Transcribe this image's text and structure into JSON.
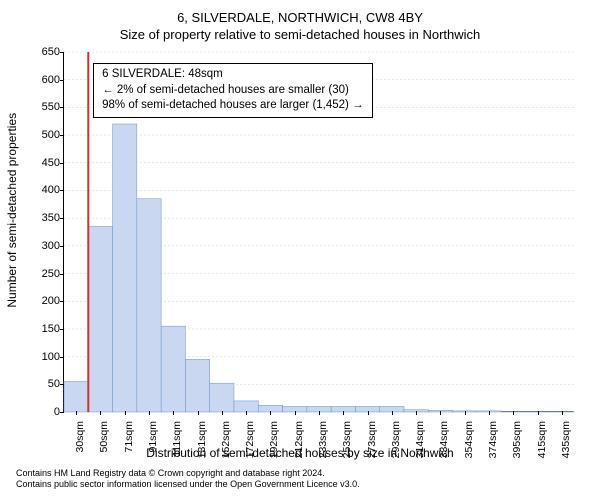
{
  "titles": {
    "main": "6, SILVERDALE, NORTHWICH, CW8 4BY",
    "sub": "Size of property relative to semi-detached houses in Northwich"
  },
  "axes": {
    "ylabel": "Number of semi-detached properties",
    "xlabel": "Distribution of semi-detached houses by size in Northwich",
    "ylim": [
      0,
      650
    ],
    "ytick_step": 50,
    "xticks": [
      "30sqm",
      "50sqm",
      "71sqm",
      "91sqm",
      "111sqm",
      "131sqm",
      "152sqm",
      "172sqm",
      "192sqm",
      "212sqm",
      "233sqm",
      "253sqm",
      "273sqm",
      "293sqm",
      "314sqm",
      "334sqm",
      "354sqm",
      "374sqm",
      "395sqm",
      "415sqm",
      "435sqm"
    ]
  },
  "chart": {
    "type": "histogram",
    "bar_color": "#c9d8f0",
    "bar_stroke": "#6c8fc7",
    "background_color": "#ffffff",
    "grid_color": "#cccccc",
    "marker_color": "#d43030",
    "bar_width": 1.0,
    "values": [
      55,
      335,
      520,
      385,
      155,
      95,
      52,
      20,
      12,
      10,
      10,
      10,
      10,
      10,
      4,
      3,
      2,
      2,
      1,
      1,
      1
    ],
    "marker_bin_index": 1,
    "marker_value_sqm": 48
  },
  "annotation": {
    "line1": "6 SILVERDALE: 48sqm",
    "line2": "← 2% of semi-detached houses are smaller (30)",
    "line3": "98% of semi-detached houses are larger (1,452) →",
    "box_left_bin": 1.2,
    "box_top_value": 630,
    "fontsize": 11.5
  },
  "footer": {
    "line1": "Contains HM Land Registry data © Crown copyright and database right 2024.",
    "line2": "Contains public sector information licensed under the Open Government Licence v3.0."
  },
  "typography": {
    "title_fontsize": 13,
    "label_fontsize": 12,
    "tick_fontsize": 11,
    "xtick_fontsize": 10.5,
    "footer_fontsize": 9
  }
}
